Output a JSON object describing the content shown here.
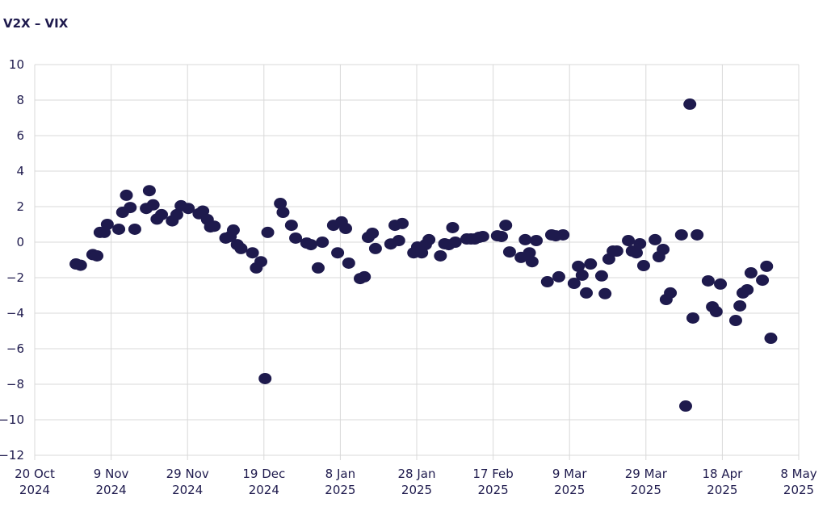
{
  "chart_data": {
    "type": "scatter",
    "title": "V2X – VIX",
    "xlabel": "",
    "ylabel": "",
    "x_units": "days since 20 Oct 2024",
    "xlim": [
      0,
      200
    ],
    "ylim": [
      -12,
      10
    ],
    "grid": true,
    "legend": "none",
    "color": "#1e1a4d",
    "y_ticks": [
      "10",
      "8",
      "6",
      "4",
      "2",
      "0",
      "−2",
      "−4",
      "−6",
      "−8",
      "−10",
      "−12"
    ],
    "x_ticks": [
      {
        "day": 0,
        "line1": "20 Oct",
        "line2": "2024"
      },
      {
        "day": 20,
        "line1": "9 Nov",
        "line2": "2024"
      },
      {
        "day": 40,
        "line1": "29 Nov",
        "line2": "2024"
      },
      {
        "day": 60,
        "line1": "19 Dec",
        "line2": "2024"
      },
      {
        "day": 80,
        "line1": "8 Jan",
        "line2": "2025"
      },
      {
        "day": 100,
        "line1": "28 Jan",
        "line2": "2025"
      },
      {
        "day": 120,
        "line1": "17 Feb",
        "line2": "2025"
      },
      {
        "day": 140,
        "line1": "9 Mar",
        "line2": "2025"
      },
      {
        "day": 160,
        "line1": "29 Mar",
        "line2": "2025"
      },
      {
        "day": 180,
        "line1": "18 Apr",
        "line2": "2025"
      },
      {
        "day": 200,
        "line1": "8 May",
        "line2": "2025"
      }
    ],
    "points": [
      [
        10.8,
        -1.23
      ],
      [
        12,
        -1.3
      ],
      [
        15.2,
        -0.7
      ],
      [
        16.3,
        -0.77
      ],
      [
        17.1,
        0.55
      ],
      [
        18.2,
        0.55
      ],
      [
        19,
        1.0
      ],
      [
        22,
        0.73
      ],
      [
        23,
        1.68
      ],
      [
        24,
        2.64
      ],
      [
        25,
        1.95
      ],
      [
        26.2,
        0.73
      ],
      [
        29.2,
        1.9
      ],
      [
        30,
        2.9
      ],
      [
        31,
        2.1
      ],
      [
        32,
        1.3
      ],
      [
        33.2,
        1.55
      ],
      [
        36,
        1.2
      ],
      [
        37.2,
        1.55
      ],
      [
        38.3,
        2.05
      ],
      [
        40.2,
        1.9
      ],
      [
        43,
        1.6
      ],
      [
        44,
        1.75
      ],
      [
        45.2,
        1.27
      ],
      [
        46,
        0.86
      ],
      [
        47,
        0.9
      ],
      [
        50,
        0.23
      ],
      [
        51.2,
        0.32
      ],
      [
        52,
        0.68
      ],
      [
        53,
        -0.14
      ],
      [
        54,
        -0.36
      ],
      [
        57,
        -0.6
      ],
      [
        58,
        -1.45
      ],
      [
        59.2,
        -1.1
      ],
      [
        60.3,
        -7.68
      ],
      [
        61,
        0.55
      ],
      [
        64.3,
        2.18
      ],
      [
        65,
        1.68
      ],
      [
        67.2,
        0.95
      ],
      [
        68.3,
        0.23
      ],
      [
        71.2,
        -0.05
      ],
      [
        72.3,
        -0.14
      ],
      [
        74.2,
        -1.45
      ],
      [
        75.3,
        0
      ],
      [
        78.2,
        0.95
      ],
      [
        79.3,
        -0.6
      ],
      [
        80.3,
        1.14
      ],
      [
        81.4,
        0.77
      ],
      [
        82.2,
        -1.18
      ],
      [
        85.2,
        -2.05
      ],
      [
        86.3,
        -1.95
      ],
      [
        87.3,
        0.27
      ],
      [
        88.4,
        0.5
      ],
      [
        89.2,
        -0.36
      ],
      [
        93.2,
        -0.1
      ],
      [
        94.3,
        0.95
      ],
      [
        95.3,
        0.09
      ],
      [
        96.2,
        1.05
      ],
      [
        99.2,
        -0.6
      ],
      [
        100.2,
        -0.27
      ],
      [
        101.3,
        -0.6
      ],
      [
        102.3,
        -0.14
      ],
      [
        103.2,
        0.14
      ],
      [
        106.2,
        -0.77
      ],
      [
        107.3,
        -0.09
      ],
      [
        108.4,
        -0.14
      ],
      [
        109.4,
        0.82
      ],
      [
        110.1,
        0
      ],
      [
        113.1,
        0.18
      ],
      [
        114.2,
        0.18
      ],
      [
        115.2,
        0.18
      ],
      [
        116.3,
        0.27
      ],
      [
        117.3,
        0.32
      ],
      [
        121.1,
        0.36
      ],
      [
        122.2,
        0.32
      ],
      [
        123.3,
        0.95
      ],
      [
        124.3,
        -0.55
      ],
      [
        127.3,
        -0.86
      ],
      [
        128.4,
        0.14
      ],
      [
        129.5,
        -0.6
      ],
      [
        130.2,
        -1.1
      ],
      [
        131.3,
        0.09
      ],
      [
        134.2,
        -2.23
      ],
      [
        135.3,
        0.41
      ],
      [
        136.4,
        0.36
      ],
      [
        137.2,
        -1.95
      ],
      [
        138.3,
        0.41
      ],
      [
        141.2,
        -2.32
      ],
      [
        142.3,
        -1.36
      ],
      [
        143.3,
        -1.86
      ],
      [
        144.4,
        -2.86
      ],
      [
        145.5,
        -1.23
      ],
      [
        148.4,
        -1.9
      ],
      [
        149.3,
        -2.9
      ],
      [
        150.3,
        -0.95
      ],
      [
        151.4,
        -0.5
      ],
      [
        152.4,
        -0.5
      ],
      [
        155.4,
        0.09
      ],
      [
        156.4,
        -0.5
      ],
      [
        157.5,
        -0.6
      ],
      [
        158.4,
        -0.09
      ],
      [
        159.4,
        -1.32
      ],
      [
        162.4,
        0.14
      ],
      [
        163.4,
        -0.82
      ],
      [
        164.5,
        -0.41
      ],
      [
        165.3,
        -3.23
      ],
      [
        166.4,
        -2.86
      ],
      [
        169.3,
        0.41
      ],
      [
        170.4,
        -9.23
      ],
      [
        171.5,
        7.77
      ],
      [
        172.3,
        -4.27
      ],
      [
        173.4,
        0.41
      ],
      [
        176.3,
        -2.18
      ],
      [
        177.4,
        -3.64
      ],
      [
        178.4,
        -3.91
      ],
      [
        179.5,
        -2.36
      ],
      [
        183.5,
        -4.41
      ],
      [
        184.6,
        -3.59
      ],
      [
        185.4,
        -2.86
      ],
      [
        186.5,
        -2.68
      ],
      [
        187.5,
        -1.73
      ],
      [
        190.5,
        -2.14
      ],
      [
        191.6,
        -1.36
      ],
      [
        192.7,
        -5.41
      ]
    ]
  }
}
